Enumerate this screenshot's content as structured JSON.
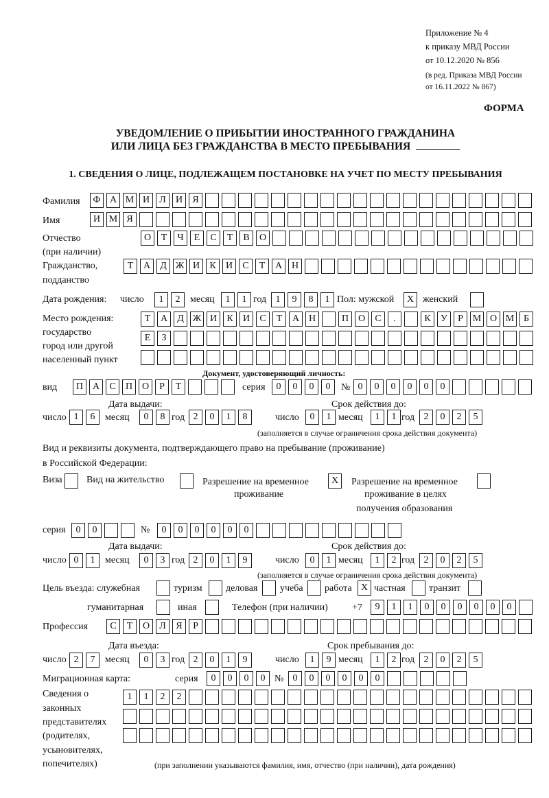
{
  "header": {
    "lines": [
      "Приложение № 4",
      "к приказу МВД России",
      "от 10.12.2020 № 856"
    ],
    "edit_lines": [
      "(в ред. Приказа МВД России",
      "от 16.11.2022 № 867)"
    ],
    "form_label": "ФОРМА",
    "title_1": "УВЕДОМЛЕНИЕ О ПРИБЫТИИ ИНОСТРАННОГО ГРАЖДАНИНА",
    "title_2": "ИЛИ ЛИЦА БЕЗ ГРАЖДАНСТВА В МЕСТО ПРЕБЫВАНИЯ",
    "section_1": "1. СВЕДЕНИЯ О ЛИЦЕ, ПОДЛЕЖАЩЕМ ПОСТАНОВКЕ НА УЧЕТ ПО МЕСТУ ПРЕБЫВАНИЯ"
  },
  "labels": {
    "surname": "Фамилия",
    "name": "Имя",
    "patronymic": "Отчество",
    "patronymic_note": "(при наличии)",
    "citizenship_1": "Гражданство,",
    "citizenship_2": "подданство",
    "birth_date": "Дата рождения:",
    "day": "число",
    "month": "месяц",
    "year": "год",
    "sex": "Пол: мужской",
    "female": "женский",
    "birth_place_1": "Место рождения:",
    "birth_place_2": "государство",
    "birth_place_3": "город или другой",
    "birth_place_4": "населенный пункт",
    "id_doc": "Документ, удостоверяющий личность:",
    "kind": "вид",
    "series": "серия",
    "number": "№",
    "issue_date": "Дата выдачи:",
    "valid_until": "Срок действия до:",
    "validity_note": "(заполняется в случае ограничения срока действия документа)",
    "permit_1": "Вид и реквизиты документа, подтверждающего право на пребывание (проживание)",
    "permit_2": "в Российской Федерации:",
    "visa": "Виза",
    "residence": "Вид на жительство",
    "temp_1": "Разрешение на временное",
    "temp_2": "проживание",
    "edu_1": "Разрешение на временное",
    "edu_2": "проживание в целях",
    "edu_3": "получения образования",
    "purpose": "Цель въезда: служебная",
    "tourism": "туризм",
    "business": "деловая",
    "study": "учеба",
    "work": "работа",
    "private": "частная",
    "transit": "транзит",
    "humanitarian": "гуманитарная",
    "other": "иная",
    "phone": "Телефон (при наличии)",
    "phone_prefix": "+7",
    "profession": "Профессия",
    "entry_date": "Дата въезда:",
    "stay_until": "Срок пребывания до:",
    "migration_card": "Миграционная карта:",
    "reps_1": "Сведения о",
    "reps_2": "законных",
    "reps_3": "представителях",
    "reps_4": "(родителях,",
    "reps_5": "усыновителях,",
    "reps_6": "попечителях)",
    "reps_note": "(при заполнении указываются фамилия, имя, отчество (при наличии), дата рождения)"
  },
  "fields": {
    "surname": [
      "Ф",
      "А",
      "М",
      "И",
      "Л",
      "И",
      "Я",
      "",
      "",
      "",
      "",
      "",
      "",
      "",
      "",
      "",
      "",
      "",
      "",
      "",
      "",
      "",
      "",
      "",
      "",
      "",
      ""
    ],
    "name": [
      "И",
      "М",
      "Я",
      "",
      "",
      "",
      "",
      "",
      "",
      "",
      "",
      "",
      "",
      "",
      "",
      "",
      "",
      "",
      "",
      "",
      "",
      "",
      "",
      "",
      "",
      "",
      ""
    ],
    "patronymic": [
      "О",
      "Т",
      "Ч",
      "Е",
      "С",
      "Т",
      "В",
      "О",
      "",
      "",
      "",
      "",
      "",
      "",
      "",
      "",
      "",
      "",
      "",
      "",
      "",
      "",
      "",
      ""
    ],
    "citizenship": [
      "Т",
      "А",
      "Д",
      "Ж",
      "И",
      "К",
      "И",
      "С",
      "Т",
      "А",
      "Н",
      "",
      "",
      "",
      "",
      "",
      "",
      "",
      "",
      "",
      "",
      "",
      "",
      "",
      ""
    ],
    "birth_day": [
      "1",
      "2"
    ],
    "birth_month": [
      "1",
      "1"
    ],
    "birth_year": [
      "1",
      "9",
      "8",
      "1"
    ],
    "sex_male": [
      "X"
    ],
    "sex_female": [
      ""
    ],
    "birth_place_1": [
      "Т",
      "А",
      "Д",
      "Ж",
      "И",
      "К",
      "И",
      "С",
      "Т",
      "А",
      "Н",
      "",
      "П",
      "О",
      "С",
      ".",
      "",
      "К",
      "У",
      "Р",
      "М",
      "О",
      "М",
      "Б"
    ],
    "birth_place_2": [
      "Е",
      "З",
      "",
      "",
      "",
      "",
      "",
      "",
      "",
      "",
      "",
      "",
      "",
      "",
      "",
      "",
      "",
      "",
      "",
      "",
      "",
      "",
      "",
      ""
    ],
    "birth_place_3": [
      "",
      "",
      "",
      "",
      "",
      "",
      "",
      "",
      "",
      "",
      "",
      "",
      "",
      "",
      "",
      "",
      "",
      "",
      "",
      "",
      "",
      "",
      "",
      ""
    ],
    "doc_kind": [
      "П",
      "А",
      "С",
      "П",
      "О",
      "Р",
      "Т",
      "",
      "",
      ""
    ],
    "doc_series": [
      "0",
      "0",
      "0",
      "0"
    ],
    "doc_number": [
      "0",
      "0",
      "0",
      "0",
      "0",
      "0",
      "",
      "",
      "",
      "",
      ""
    ],
    "doc_issue_day": [
      "1",
      "6"
    ],
    "doc_issue_month": [
      "0",
      "8"
    ],
    "doc_issue_year": [
      "2",
      "0",
      "1",
      "8"
    ],
    "doc_valid_day": [
      "0",
      "1"
    ],
    "doc_valid_month": [
      "1",
      "1"
    ],
    "doc_valid_year": [
      "2",
      "0",
      "2",
      "5"
    ],
    "permit_visa": [
      ""
    ],
    "permit_residence": [
      ""
    ],
    "permit_temp": [
      "X"
    ],
    "permit_edu": [
      ""
    ],
    "permit_series": [
      "0",
      "0",
      "",
      ""
    ],
    "permit_number": [
      "0",
      "0",
      "0",
      "0",
      "0",
      "0",
      "",
      "",
      "",
      "",
      "",
      "",
      "",
      "",
      ""
    ],
    "permit_issue_day": [
      "0",
      "1"
    ],
    "permit_issue_month": [
      "0",
      "3"
    ],
    "permit_issue_year": [
      "2",
      "0",
      "1",
      "9"
    ],
    "permit_valid_day": [
      "0",
      "1"
    ],
    "permit_valid_month": [
      "1",
      "2"
    ],
    "permit_valid_year": [
      "2",
      "0",
      "2",
      "5"
    ],
    "purpose_official": [
      ""
    ],
    "purpose_tourism": [
      ""
    ],
    "purpose_business": [
      ""
    ],
    "purpose_study": [
      ""
    ],
    "purpose_work": [
      "X"
    ],
    "purpose_private": [
      ""
    ],
    "purpose_transit": [
      ""
    ],
    "purpose_humanitarian": [
      ""
    ],
    "purpose_other": [
      ""
    ],
    "phone": [
      "9",
      "1",
      "1",
      "0",
      "0",
      "0",
      "0",
      "0",
      "0",
      ""
    ],
    "profession": [
      "С",
      "Т",
      "О",
      "Л",
      "Я",
      "Р",
      "",
      "",
      "",
      "",
      "",
      "",
      "",
      "",
      "",
      "",
      "",
      "",
      "",
      "",
      "",
      "",
      "",
      "",
      "",
      ""
    ],
    "entry_day": [
      "2",
      "7"
    ],
    "entry_month": [
      "0",
      "3"
    ],
    "entry_year": [
      "2",
      "0",
      "1",
      "9"
    ],
    "stay_day": [
      "1",
      "9"
    ],
    "stay_month": [
      "1",
      "2"
    ],
    "stay_year": [
      "2",
      "0",
      "2",
      "5"
    ],
    "migration_series": [
      "0",
      "0",
      "0",
      "0"
    ],
    "migration_number": [
      "0",
      "0",
      "0",
      "0",
      "0",
      "0",
      "",
      "",
      "",
      "",
      ""
    ],
    "reps_1": [
      "1",
      "1",
      "2",
      "2",
      "",
      "",
      "",
      "",
      "",
      "",
      "",
      "",
      "",
      "",
      "",
      "",
      "",
      "",
      "",
      "",
      "",
      "",
      "",
      "",
      ""
    ],
    "reps_2": [
      "",
      "",
      "",
      "",
      "",
      "",
      "",
      "",
      "",
      "",
      "",
      "",
      "",
      "",
      "",
      "",
      "",
      "",
      "",
      "",
      "",
      "",
      "",
      "",
      ""
    ],
    "reps_3": [
      "",
      "",
      "",
      "",
      "",
      "",
      "",
      "",
      "",
      "",
      "",
      "",
      "",
      "",
      "",
      "",
      "",
      "",
      "",
      "",
      "",
      "",
      "",
      "",
      ""
    ]
  }
}
